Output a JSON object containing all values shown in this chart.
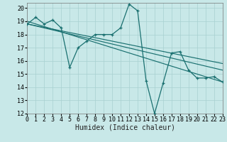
{
  "xlabel": "Humidex (Indice chaleur)",
  "bg_color": "#c8e8e8",
  "grid_color": "#a8d0d0",
  "line_color": "#1a7070",
  "xlim": [
    0,
    23
  ],
  "ylim": [
    12,
    20.4
  ],
  "yticks": [
    12,
    13,
    14,
    15,
    16,
    17,
    18,
    19,
    20
  ],
  "xticks": [
    0,
    1,
    2,
    3,
    4,
    5,
    6,
    7,
    8,
    9,
    10,
    11,
    12,
    13,
    14,
    15,
    16,
    17,
    18,
    19,
    20,
    21,
    22,
    23
  ],
  "main_x": [
    0,
    1,
    2,
    3,
    4,
    5,
    6,
    7,
    8,
    9,
    10,
    11,
    12,
    13,
    14,
    15,
    16,
    17,
    18,
    19,
    20,
    21,
    22,
    23
  ],
  "main_y": [
    18.8,
    19.3,
    18.8,
    19.1,
    18.5,
    15.5,
    17.0,
    17.5,
    18.0,
    18.0,
    18.0,
    18.5,
    20.3,
    19.8,
    14.5,
    12.0,
    14.3,
    16.6,
    16.7,
    15.3,
    14.7,
    14.7,
    14.8,
    14.4
  ],
  "trend1_x": [
    0,
    23
  ],
  "trend1_y": [
    19.0,
    14.4
  ],
  "trend2_x": [
    0,
    23
  ],
  "trend2_y": [
    18.8,
    15.3
  ],
  "trend3_x": [
    0,
    23
  ],
  "trend3_y": [
    18.8,
    15.8
  ],
  "tick_fontsize": 6,
  "xlabel_fontsize": 7
}
